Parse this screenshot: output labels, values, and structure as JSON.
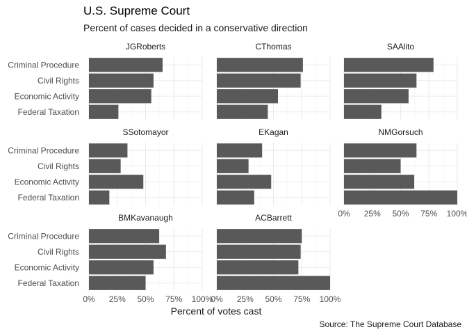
{
  "chart_data": {
    "type": "bar",
    "orientation": "horizontal",
    "layout": "faceted",
    "title": "U.S. Supreme Court",
    "subtitle": "Percent of cases decided in a conservative direction",
    "xlabel": "Percent of votes cast",
    "caption": "Source: The Supreme Court Database",
    "categories": [
      "Criminal Procedure",
      "Civil Rights",
      "Economic Activity",
      "Federal Taxation"
    ],
    "xlim": [
      0,
      1
    ],
    "xticks": [
      "0%",
      "25%",
      "50%",
      "75%",
      "100%"
    ],
    "bar_color": "#595959",
    "grid": true,
    "facets": [
      {
        "name": "JGRoberts",
        "values": [
          0.65,
          0.57,
          0.55,
          0.26
        ]
      },
      {
        "name": "CThomas",
        "values": [
          0.76,
          0.74,
          0.54,
          0.45
        ]
      },
      {
        "name": "SAAlito",
        "values": [
          0.79,
          0.64,
          0.57,
          0.33
        ]
      },
      {
        "name": "SSotomayor",
        "values": [
          0.34,
          0.28,
          0.48,
          0.18
        ]
      },
      {
        "name": "EKagan",
        "values": [
          0.4,
          0.28,
          0.48,
          0.33
        ]
      },
      {
        "name": "NMGorsuch",
        "values": [
          0.64,
          0.5,
          0.62,
          1.0
        ]
      },
      {
        "name": "BMKavanaugh",
        "values": [
          0.62,
          0.68,
          0.57,
          0.5
        ]
      },
      {
        "name": "ACBarrett",
        "values": [
          0.75,
          0.74,
          0.72,
          1.0
        ]
      }
    ]
  }
}
